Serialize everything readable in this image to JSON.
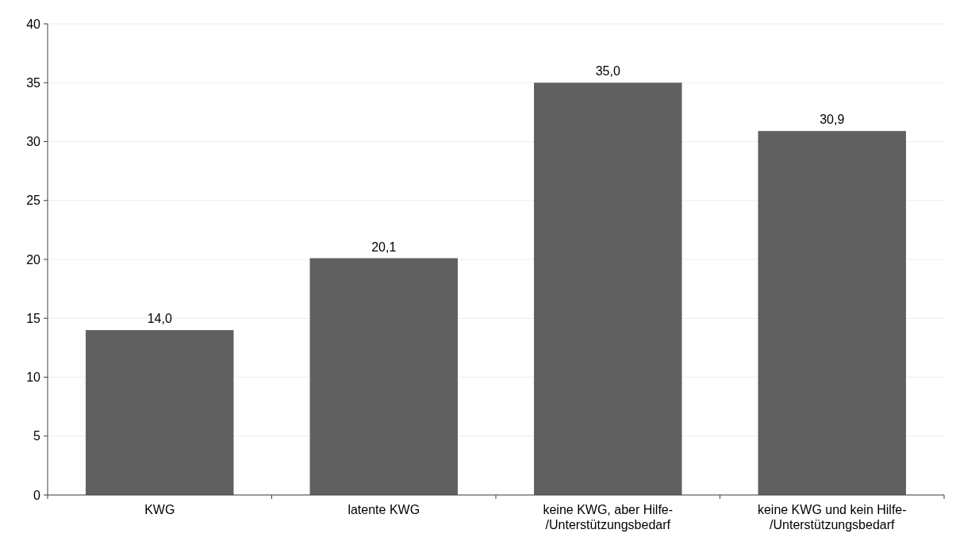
{
  "chart_data": {
    "type": "bar",
    "categories": [
      "KWG",
      "latente KWG",
      "keine KWG, aber Hilfe-/Unterstützungsbedarf",
      "keine KWG und kein Hilfe-/Unterstützungsbedarf"
    ],
    "values": [
      14.0,
      20.1,
      35.0,
      30.9
    ],
    "value_labels": [
      "14,0",
      "20,1",
      "35,0",
      "30,9"
    ],
    "color": "#606060",
    "ylim": [
      0,
      40
    ],
    "yticks": [
      0,
      5,
      10,
      15,
      20,
      25,
      30,
      35,
      40
    ],
    "grid": "y"
  }
}
